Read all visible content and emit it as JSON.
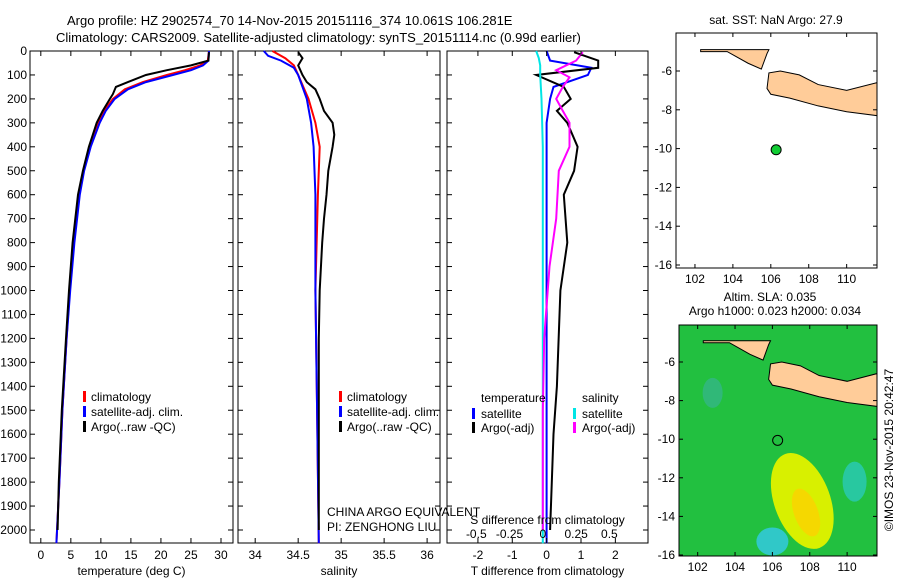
{
  "title_line1": "Argo profile: HZ 2902574_70 14-Nov-2015 20151116_374 10.061S 106.281E",
  "title_line2": "Climatology: CARS2009. Satellite-adjusted climatology: synTS_20151114.nc (0.99d earlier)",
  "chart_data": [
    {
      "type": "line",
      "name": "temperature",
      "xlabel": "temperature (deg C)",
      "ylabel": "",
      "xlim": [
        -1.8,
        32
      ],
      "ylim": [
        2055,
        0
      ],
      "xticks": [
        0,
        5,
        10,
        15,
        20,
        25,
        30
      ],
      "yticks": [
        0,
        100,
        200,
        300,
        400,
        500,
        600,
        700,
        800,
        900,
        1000,
        1100,
        1200,
        1300,
        1400,
        1500,
        1600,
        1700,
        1800,
        1900,
        2000
      ],
      "legend": [
        "climatology",
        "satellite-adj. clim.",
        "Argo(..raw -QC)"
      ],
      "series": [
        {
          "name": "climatology",
          "color": "#ff0000",
          "depth": [
            0,
            40,
            60,
            80,
            100,
            130,
            160,
            200,
            250,
            300,
            400,
            500,
            600,
            800,
            1000,
            1200,
            1500,
            1800,
            2055
          ],
          "values": [
            28,
            27.8,
            26.5,
            24,
            21,
            17,
            14,
            12,
            10.5,
            9.6,
            8.2,
            7.1,
            6.4,
            5.5,
            4.8,
            4.3,
            3.6,
            3.1,
            2.6
          ]
        },
        {
          "name": "satellite-adj. clim.",
          "color": "#0000ff",
          "depth": [
            0,
            40,
            60,
            80,
            100,
            130,
            160,
            200,
            250,
            300,
            400,
            500,
            600,
            800,
            1000,
            1200,
            1500,
            1800,
            2055
          ],
          "values": [
            28,
            27.9,
            27,
            25,
            22,
            17.5,
            14.5,
            12.3,
            10.8,
            9.8,
            8.3,
            7.2,
            6.5,
            5.6,
            4.9,
            4.3,
            3.6,
            3.1,
            2.6
          ]
        },
        {
          "name": "Argo(..raw -QC)",
          "color": "#000000",
          "depth": [
            5,
            40,
            60,
            80,
            100,
            130,
            150,
            180,
            200,
            250,
            300,
            400,
            500,
            600,
            800,
            1000,
            1200,
            1500,
            1800,
            2000
          ],
          "values": [
            28,
            27.9,
            25,
            21,
            17.5,
            14.5,
            12.5,
            12,
            11.5,
            10.3,
            9.3,
            8,
            7,
            6.2,
            5.3,
            4.7,
            4.2,
            3.5,
            3.0,
            2.8
          ]
        }
      ]
    },
    {
      "type": "line",
      "name": "salinity",
      "xlabel": "salinity",
      "xlim": [
        33.8,
        36.15
      ],
      "ylim": [
        2055,
        0
      ],
      "xticks": [
        34,
        34.5,
        35,
        35.5,
        36
      ],
      "legend": [
        "climatology",
        "satellite-adj. clim.",
        "Argo(..raw -QC)"
      ],
      "annotation": [
        "CHINA ARGO EQUIVALENT",
        "PI: ZENGHONG LIU"
      ],
      "series": [
        {
          "name": "climatology",
          "color": "#ff0000",
          "depth": [
            0,
            30,
            60,
            100,
            150,
            200,
            300,
            400,
            600,
            1000,
            1500,
            2055
          ],
          "values": [
            34.2,
            34.35,
            34.45,
            34.5,
            34.56,
            34.62,
            34.7,
            34.75,
            34.73,
            34.7,
            34.72,
            34.74
          ]
        },
        {
          "name": "satellite-adj. clim.",
          "color": "#0000ff",
          "depth": [
            0,
            20,
            40,
            70,
            100,
            150,
            200,
            300,
            400,
            600,
            1000,
            1500,
            2055
          ],
          "values": [
            34.1,
            34.15,
            34.3,
            34.45,
            34.5,
            34.55,
            34.6,
            34.65,
            34.68,
            34.7,
            34.7,
            34.72,
            34.74
          ]
        },
        {
          "name": "Argo(..raw -QC)",
          "color": "#000000",
          "depth": [
            5,
            30,
            60,
            100,
            130,
            160,
            200,
            250,
            300,
            350,
            400,
            500,
            600,
            700,
            800,
            1000,
            1200,
            1500,
            2000
          ],
          "values": [
            34.5,
            34.55,
            34.5,
            34.55,
            34.6,
            34.7,
            34.75,
            34.8,
            34.9,
            34.92,
            34.9,
            34.85,
            34.83,
            34.8,
            34.78,
            34.75,
            34.74,
            34.74,
            34.74
          ]
        }
      ]
    },
    {
      "type": "line",
      "name": "difference",
      "xlabel": "T difference from climatology",
      "x2label": "S difference from climatology",
      "xlim": [
        -2.9,
        2.95
      ],
      "xticks": [
        -2,
        -1,
        0,
        1,
        2
      ],
      "x2lim": [
        -0.72,
        0.79
      ],
      "x2ticks": [
        "-0.5",
        "-0.25",
        "0",
        "0.25",
        "0.5"
      ],
      "ylim": [
        2055,
        0
      ],
      "legend_temperature": {
        "title": "temperature",
        "items": [
          "satellite",
          "Argo(-adj)"
        ]
      },
      "legend_salinity": {
        "title": "salinity",
        "items": [
          "satellite",
          "Argo(-adj)"
        ]
      },
      "series": [
        {
          "name": "T satellite",
          "color": "#0000ff",
          "axis": "T",
          "depth": [
            0,
            40,
            70,
            100,
            150,
            200,
            300,
            500,
            1000,
            2055
          ],
          "values": [
            0,
            0.1,
            1.3,
            1.2,
            0.2,
            0.1,
            0,
            0,
            0,
            0
          ]
        },
        {
          "name": "T Argo(-adj)",
          "color": "#000000",
          "axis": "T",
          "depth": [
            5,
            40,
            70,
            100,
            150,
            200,
            250,
            300,
            400,
            500,
            600,
            800,
            1000,
            1400,
            1600,
            2000
          ],
          "values": [
            0.8,
            1.5,
            1.5,
            -0.3,
            0.5,
            0.7,
            0.3,
            0.6,
            0.9,
            0.8,
            0.5,
            0.6,
            0.4,
            0.3,
            0.2,
            0.1
          ]
        },
        {
          "name": "S satellite",
          "color": "#00e5e5",
          "axis": "S",
          "depth": [
            0,
            30,
            60,
            100,
            200,
            400,
            800,
            1500,
            2055
          ],
          "values": [
            -0.05,
            -0.03,
            -0.02,
            -0.02,
            -0.01,
            0,
            0,
            0,
            0
          ]
        },
        {
          "name": "S Argo(-adj)",
          "color": "#ff00ff",
          "axis": "S",
          "depth": [
            5,
            40,
            80,
            110,
            150,
            200,
            250,
            300,
            400,
            500,
            700,
            900,
            1200,
            1500,
            2000
          ],
          "values": [
            0.3,
            0.25,
            0.1,
            0.2,
            0.15,
            0.1,
            0.15,
            0.2,
            0.2,
            0.12,
            0.1,
            0.05,
            0.01,
            0,
            0
          ]
        }
      ]
    }
  ],
  "map_top": {
    "title": "sat. SST: NaN Argo: 27.9",
    "lon_ticks": [
      "102",
      "104",
      "106",
      "108",
      "110"
    ],
    "lat_ticks": [
      "-6",
      "-8",
      "-10",
      "-12",
      "-14",
      "-16"
    ],
    "float_lat": -10.061,
    "float_lon": 106.281
  },
  "map_bottom": {
    "title1": "Altim. SLA: 0.035",
    "title2": "Argo h1000: 0.023 h2000: 0.034",
    "lon_ticks": [
      "102",
      "104",
      "106",
      "108",
      "110"
    ],
    "lat_ticks": [
      "-6",
      "-8",
      "-10",
      "-12",
      "-14",
      "-16"
    ]
  },
  "credit": "©IMOS 23-Nov-2015 20:42:47",
  "colors": {
    "land": "#ffcc99",
    "sea": "#11cc33"
  }
}
